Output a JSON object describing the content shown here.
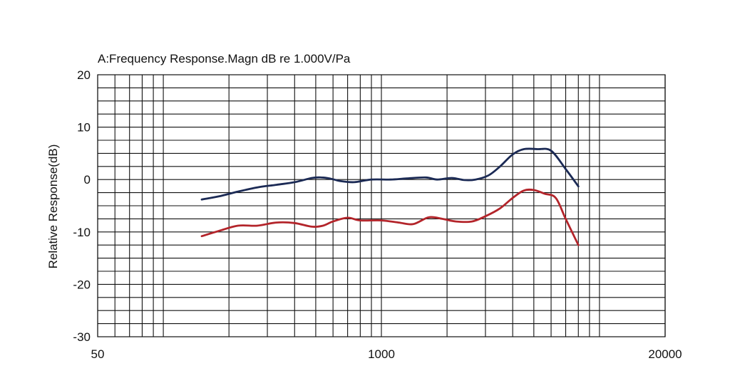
{
  "chart_data": {
    "type": "line",
    "title": "A:Frequency Response.Magn dB re 1.000V/Pa",
    "xlabel": "",
    "ylabel": "Relative Response(dB)",
    "xscale": "log",
    "xlim": [
      50,
      20000
    ],
    "ylim": [
      -30,
      20
    ],
    "grid": true,
    "xticks": [
      50,
      1000,
      20000
    ],
    "xtick_labels": [
      "50",
      "1000",
      "20000"
    ],
    "yticks": [
      20,
      10,
      0,
      -10,
      -20,
      -30
    ],
    "ytick_labels": [
      "20",
      "10",
      "0",
      "-10",
      "-20",
      "-30"
    ],
    "series": [
      {
        "color": "#1b2a55",
        "x": [
          150,
          180,
          220,
          270,
          330,
          400,
          480,
          530,
          580,
          650,
          750,
          900,
          1100,
          1300,
          1600,
          1800,
          2100,
          2400,
          2700,
          3100,
          3500,
          4000,
          4500,
          5200,
          6000,
          7000,
          8000
        ],
        "y": [
          -3.8,
          -3.2,
          -2.3,
          -1.5,
          -1.0,
          -0.5,
          0.3,
          0.4,
          0.2,
          -0.3,
          -0.5,
          0.0,
          0.0,
          0.2,
          0.4,
          0.0,
          0.3,
          -0.1,
          0.0,
          0.8,
          2.5,
          4.8,
          5.8,
          5.8,
          5.5,
          2.0,
          -1.3
        ]
      },
      {
        "color": "#b3242a",
        "x": [
          150,
          180,
          220,
          270,
          330,
          400,
          480,
          540,
          600,
          700,
          800,
          1000,
          1200,
          1400,
          1650,
          1900,
          2200,
          2600,
          3000,
          3500,
          4000,
          4500,
          5000,
          5600,
          6300,
          7000,
          8000
        ],
        "y": [
          -10.8,
          -9.8,
          -8.8,
          -8.8,
          -8.2,
          -8.3,
          -9.0,
          -8.8,
          -8.0,
          -7.3,
          -7.8,
          -7.8,
          -8.2,
          -8.5,
          -7.2,
          -7.5,
          -8.0,
          -8.0,
          -7.0,
          -5.5,
          -3.5,
          -2.1,
          -2.0,
          -2.7,
          -3.5,
          -7.5,
          -12.5
        ]
      }
    ]
  }
}
